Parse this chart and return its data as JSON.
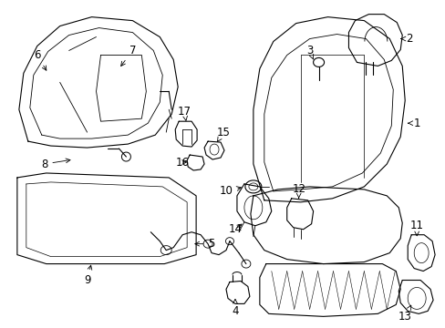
{
  "background_color": "#ffffff",
  "line_color": "#000000",
  "figure_width": 4.89,
  "figure_height": 3.6,
  "dpi": 100,
  "font_size": 8.5
}
